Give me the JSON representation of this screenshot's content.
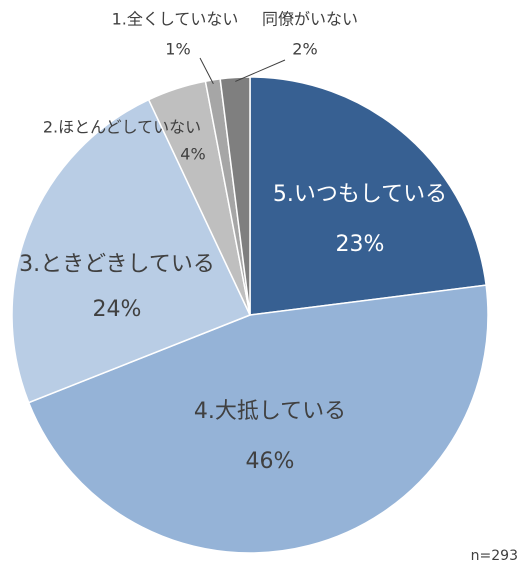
{
  "chart_data": {
    "type": "pie",
    "categories": [
      "5.いつもしている",
      "4.大抵している",
      "3.ときどきしている",
      "2.ほとんどしていない",
      "1.全くしていない",
      "同僚がいない"
    ],
    "values": [
      23,
      46,
      24,
      4,
      1,
      2
    ],
    "value_labels": [
      "23%",
      "46%",
      "24%",
      "4%",
      "1%",
      "2%"
    ],
    "colors": [
      "#376092",
      "#95b3d7",
      "#b9cde5",
      "#bfbfbf",
      "#a6a6a6",
      "#7f7f7f"
    ],
    "annotation": "n=293"
  }
}
